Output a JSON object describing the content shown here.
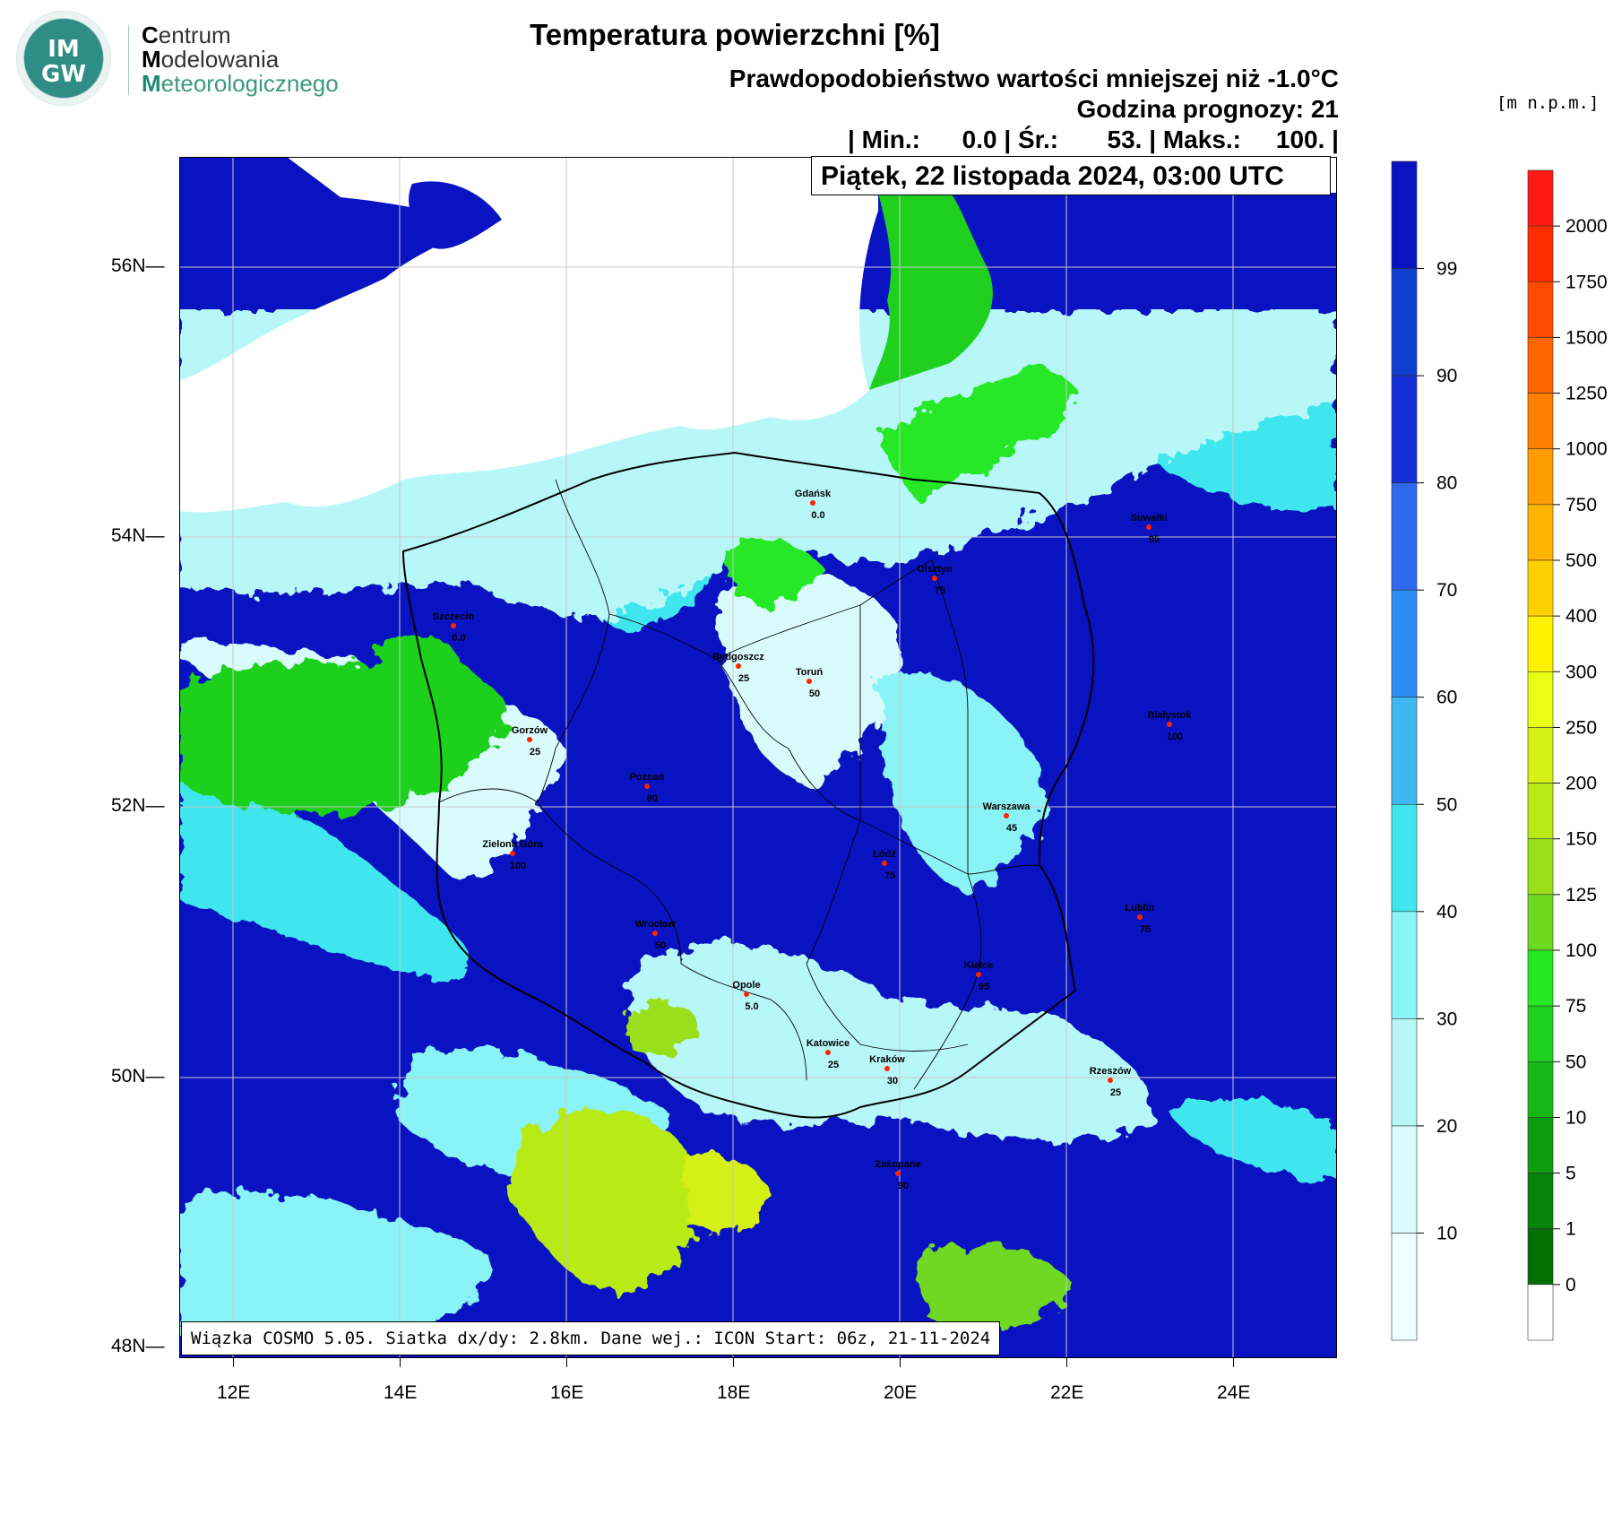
{
  "logo": {
    "line1_initial": "C",
    "line1_rest": "entrum",
    "line2_initial": "M",
    "line2_rest": "odelowania",
    "line3_initial": "M",
    "line3_rest": "eteorologicznego",
    "emblem_top": "IM",
    "emblem_bottom": "GW"
  },
  "header": {
    "title": "Temperatura powierzchni [%]",
    "probability": "Prawdopodobieństwo wartości mniejszej niż -1.0°C",
    "forecast_hour": "Godzina prognozy: 21",
    "stats": "| Min.:      0.0 | Śr.:       53. | Maks.:     100. |",
    "date": "Piątek, 22 listopada 2024, 03:00 UTC",
    "unit": "[m n.p.m.]"
  },
  "footnote": "Wiązka COSMO 5.05. Siatka dx/dy: 2.8km. Dane wej.: ICON Start: 06z, 21-11-2024",
  "axes": {
    "lat_labels": [
      "56N",
      "54N",
      "52N",
      "50N",
      "48N"
    ],
    "lon_labels": [
      "12E",
      "14E",
      "16E",
      "18E",
      "20E",
      "22E",
      "24E"
    ]
  },
  "legend_probability": {
    "labels": [
      "99",
      "90",
      "80",
      "70",
      "60",
      "50",
      "40",
      "30",
      "20",
      "10"
    ],
    "colors": [
      "#0a13c2",
      "#0f3fd0",
      "#1530d8",
      "#2f69f0",
      "#2b8df4",
      "#3eb8f2",
      "#40e6ee",
      "#8af3f5",
      "#b8f7f8",
      "#d9fbfb",
      "#ecfefe"
    ]
  },
  "legend_elevation": {
    "labels": [
      "2000",
      "1750",
      "1500",
      "1250",
      "1000",
      "750",
      "500",
      "400",
      "300",
      "250",
      "200",
      "150",
      "125",
      "100",
      "75",
      "50",
      "10",
      "5",
      "1",
      "0"
    ],
    "colors": [
      "#ff1a12",
      "#ff2d00",
      "#ff4a00",
      "#ff6600",
      "#ff7f00",
      "#ff9c00",
      "#ffb400",
      "#ffd100",
      "#fff200",
      "#eaff15",
      "#d4f014",
      "#b8ea16",
      "#99e01b",
      "#6fd821",
      "#25e825",
      "#1fd01f",
      "#15b815",
      "#0e9d0e",
      "#078407",
      "#056e05",
      "#ffffff"
    ]
  },
  "cities": [
    {
      "name": "Gdańsk",
      "value": "0.0"
    },
    {
      "name": "Suwałki",
      "value": "95"
    },
    {
      "name": "Olsztyn",
      "value": "75"
    },
    {
      "name": "Szczecin",
      "value": "0.0"
    },
    {
      "name": "Bydgoszcz",
      "value": "25"
    },
    {
      "name": "Toruń",
      "value": "50"
    },
    {
      "name": "Białystok",
      "value": "100"
    },
    {
      "name": "Gorzów",
      "value": "25"
    },
    {
      "name": "Poznań",
      "value": "80"
    },
    {
      "name": "Warszawa",
      "value": "45"
    },
    {
      "name": "Zielona Góra",
      "value": "100"
    },
    {
      "name": "Łódź",
      "value": "75"
    },
    {
      "name": "Lublin",
      "value": "75"
    },
    {
      "name": "Wrocław",
      "value": "50"
    },
    {
      "name": "Kielce",
      "value": "95"
    },
    {
      "name": "Opole",
      "value": "5.0"
    },
    {
      "name": "Katowice",
      "value": "25"
    },
    {
      "name": "Kraków",
      "value": "30"
    },
    {
      "name": "Rzeszów",
      "value": "25"
    },
    {
      "name": "Zakopane",
      "value": "90"
    }
  ]
}
